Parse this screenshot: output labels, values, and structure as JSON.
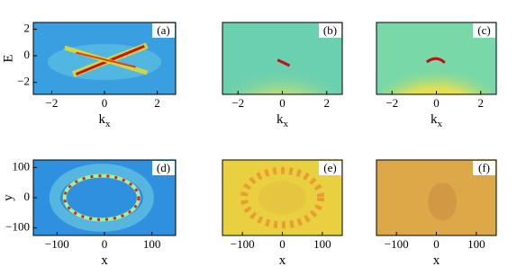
{
  "chart_data": [
    {
      "type": "heatmap",
      "panel_label": "(a)",
      "xlabel": "k",
      "xlabel_sub": "x",
      "ylabel": "E",
      "xlim": [
        -2.7,
        2.7
      ],
      "ylim": [
        -2.9,
        2.5
      ],
      "xticks": [
        {
          "value": -2,
          "label": "−2"
        },
        0,
        2
      ],
      "yticks": [
        {
          "value": -2,
          "label": "−2"
        },
        0,
        2
      ]
    },
    {
      "type": "heatmap",
      "panel_label": "(b)",
      "xlabel": "k",
      "xlabel_sub": "x",
      "xlim": [
        -2.7,
        2.7
      ],
      "ylim": [
        -2.9,
        2.5
      ],
      "xticks": [
        {
          "value": -2,
          "label": "−2"
        },
        0,
        2
      ]
    },
    {
      "type": "heatmap",
      "panel_label": "(c)",
      "xlabel": "k",
      "xlabel_sub": "x",
      "xlim": [
        -2.7,
        2.7
      ],
      "ylim": [
        -2.9,
        2.5
      ],
      "xticks": [
        {
          "value": -2,
          "label": "−2"
        },
        0,
        2
      ]
    },
    {
      "type": "heatmap",
      "panel_label": "(d)",
      "xlabel": "x",
      "ylabel": "y",
      "xlim": [
        -150,
        150
      ],
      "ylim": [
        -125,
        125
      ],
      "xticks": [
        {
          "value": -100,
          "label": "−100"
        },
        0,
        100
      ],
      "yticks": [
        {
          "value": -100,
          "label": "−100"
        },
        0,
        100
      ]
    },
    {
      "type": "heatmap",
      "panel_label": "(e)",
      "xlabel": "x",
      "xlim": [
        -150,
        150
      ],
      "ylim": [
        -125,
        125
      ],
      "xticks": [
        {
          "value": -100,
          "label": "−100"
        },
        0,
        100
      ]
    },
    {
      "type": "heatmap",
      "panel_label": "(f)",
      "xlabel": "x",
      "xlim": [
        -150,
        150
      ],
      "ylim": [
        -125,
        125
      ],
      "xticks": [
        {
          "value": -100,
          "label": "−100"
        },
        0,
        100
      ]
    }
  ]
}
